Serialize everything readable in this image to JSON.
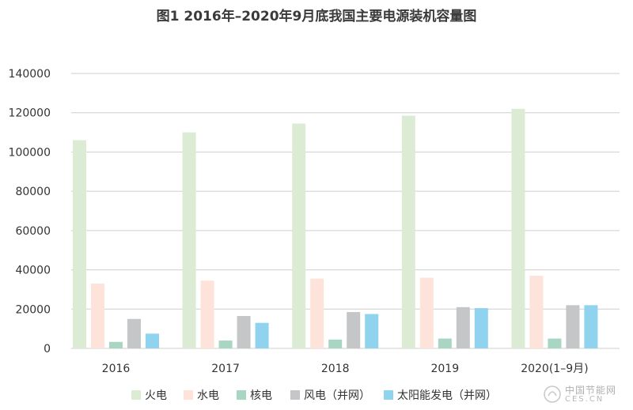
{
  "chart_data": {
    "type": "bar",
    "title": "图1 2016年–2020年9月底我国主要电源装机容量图",
    "categories": [
      "2016",
      "2017",
      "2018",
      "2019",
      "2020(1–9月)"
    ],
    "series": [
      {
        "name": "火电",
        "color": "#dcebd3",
        "values": [
          106000,
          110000,
          114500,
          118500,
          122000
        ]
      },
      {
        "name": "水电",
        "color": "#fde3d9",
        "values": [
          33000,
          34500,
          35500,
          36000,
          37000
        ]
      },
      {
        "name": "核电",
        "color": "#a8d6c2",
        "values": [
          3300,
          4000,
          4500,
          5000,
          5000
        ]
      },
      {
        "name": "风电（并网）",
        "color": "#c4c6c8",
        "values": [
          15000,
          16500,
          18500,
          21000,
          22000
        ]
      },
      {
        "name": "太阳能发电（并网）",
        "color": "#8fd3ef",
        "values": [
          7500,
          13000,
          17500,
          20500,
          22000
        ]
      }
    ],
    "ylim": [
      0,
      140000
    ],
    "yticks": [
      "0",
      "20000",
      "40000",
      "60000",
      "80000",
      "100000",
      "120000",
      "140000"
    ],
    "grid": true,
    "legend_position": "bottom"
  },
  "watermark": {
    "cn": "中国节能网",
    "en": "CES.CN"
  }
}
